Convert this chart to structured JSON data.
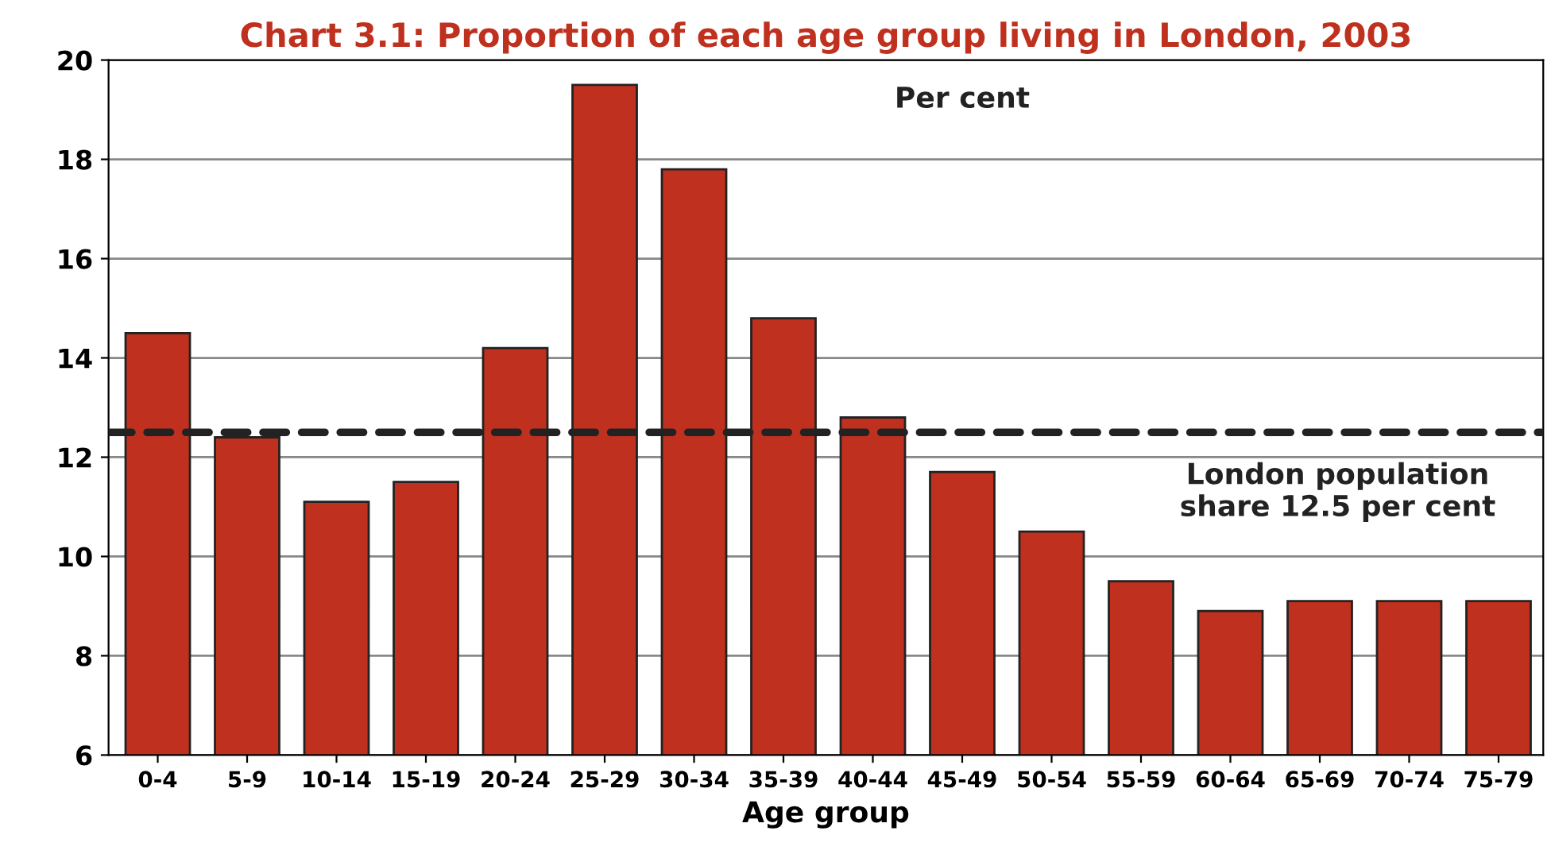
{
  "chart_data": {
    "type": "bar",
    "title": "Chart 3.1: Proportion of each age group living in London, 2003",
    "xlabel": "Age group",
    "categories": [
      "0-4",
      "5-9",
      "10-14",
      "15-19",
      "20-24",
      "25-29",
      "30-34",
      "35-39",
      "40-44",
      "45-49",
      "50-54",
      "55-59",
      "60-64",
      "65-69",
      "70-74",
      "75-79"
    ],
    "values": [
      14.5,
      12.4,
      11.1,
      11.5,
      14.2,
      19.5,
      17.8,
      14.8,
      12.8,
      11.7,
      10.5,
      9.5,
      8.9,
      9.1,
      9.1,
      9.1
    ],
    "color": "#c0301e",
    "ylim": [
      6,
      20
    ],
    "yticks": [
      6,
      8,
      10,
      12,
      14,
      16,
      18,
      20
    ],
    "grid": "y",
    "ref_lines": [
      {
        "axis": "y",
        "value": 12.5,
        "label": "London population\nshare 12.5 per cent",
        "color": "#222222",
        "line_style": "dashed"
      }
    ],
    "annotations": [
      "Per cent"
    ]
  }
}
